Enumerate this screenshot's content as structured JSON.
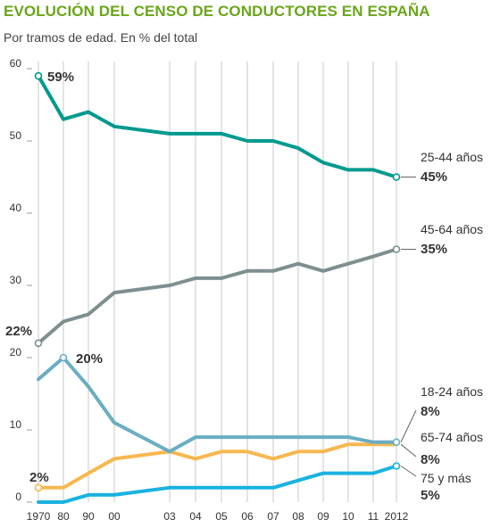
{
  "title": "EVOLUCIÓN DEL CENSO DE CONDUCTORES EN ESPAÑA",
  "subtitle": "Por tramos de edad. En % del total",
  "colors": {
    "title": "#6aa61a",
    "g25_44": "#009a8e",
    "g45_64": "#7e8f8f",
    "g18_24": "#6aaec2",
    "g65_74": "#f7b84f",
    "g75": "#1ab2e0"
  },
  "chart_data": {
    "type": "line",
    "x": [
      1970,
      1980,
      1990,
      2000,
      2003,
      2004,
      2005,
      2006,
      2007,
      2008,
      2009,
      2010,
      2011,
      2012
    ],
    "x_tick_labels": [
      "1970",
      "80",
      "90",
      "00",
      "03",
      "04",
      "05",
      "06",
      "07",
      "08",
      "09",
      "10",
      "11",
      "2012"
    ],
    "ylim": [
      0,
      60
    ],
    "y_ticks": [
      0,
      10,
      20,
      30,
      40,
      50,
      60
    ],
    "grid": "vertical",
    "series": [
      {
        "name": "25-44 años",
        "color_key": "g25_44",
        "values": [
          59,
          53,
          54,
          52,
          51,
          51,
          51,
          50,
          50,
          49,
          47,
          46,
          46,
          45
        ],
        "start_label": "59%",
        "end_label": "45%"
      },
      {
        "name": "45-64 años",
        "color_key": "g45_64",
        "values": [
          22,
          25,
          26,
          29,
          30,
          31,
          31,
          32,
          32,
          33,
          32,
          33,
          34,
          35
        ],
        "start_label": "22%",
        "end_label": "35%"
      },
      {
        "name": "18-24 años",
        "color_key": "g18_24",
        "values": [
          17,
          20,
          16,
          11,
          7,
          9,
          9,
          9,
          9,
          9,
          9,
          9,
          8.3,
          8.3
        ],
        "peak_label": "20%",
        "end_label": "8%"
      },
      {
        "name": "65-74 años",
        "color_key": "g65_74",
        "values": [
          2,
          2,
          4,
          6,
          7,
          6,
          7,
          7,
          6,
          7,
          7,
          8,
          8,
          8
        ],
        "start_label": "2%",
        "end_label": "8%"
      },
      {
        "name": "75 y más",
        "color_key": "g75",
        "values": [
          0,
          0,
          1,
          1,
          2,
          2,
          2,
          2,
          2,
          3,
          4,
          4,
          4,
          5
        ],
        "end_label": "5%"
      }
    ]
  }
}
